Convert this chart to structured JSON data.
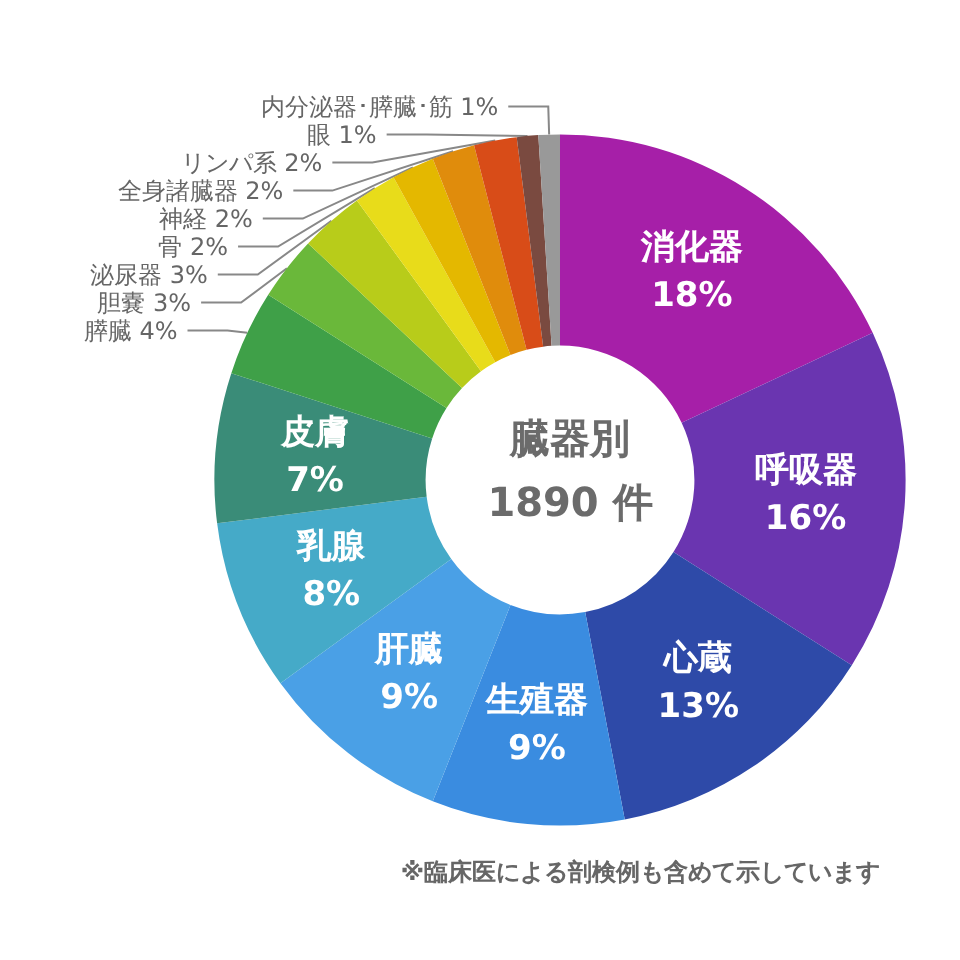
{
  "chart_data": {
    "type": "donut",
    "title": "臓器別",
    "subtitle": "1890 件",
    "categories": [
      "消化器",
      "呼吸器",
      "心蔵",
      "生殖器",
      "肝臓",
      "乳腺",
      "皮膚",
      "膵臓",
      "胆嚢",
      "泌尿器",
      "骨",
      "神経",
      "全身諸臓器",
      "リンパ系",
      "眼",
      "内分泌器･膵臓･筋"
    ],
    "values": [
      18,
      16,
      13,
      9,
      9,
      8,
      7,
      4,
      3,
      3,
      2,
      2,
      2,
      2,
      1,
      1
    ],
    "value_labels": [
      "18%",
      "16%",
      "13%",
      "9%",
      "9%",
      "8%",
      "7%",
      "4%",
      "3%",
      "3%",
      "2%",
      "2%",
      "2%",
      "2%",
      "1%",
      "1%"
    ],
    "colors": [
      "#a61fa8",
      "#6a35b0",
      "#2e4aa8",
      "#3a8ce0",
      "#4aa0e6",
      "#45aac8",
      "#3a8c78",
      "#3fa048",
      "#6ab83a",
      "#b8cc1a",
      "#e8dc1a",
      "#e4b800",
      "#e08c0c",
      "#d84c18",
      "#7a4a40",
      "#999999"
    ],
    "legend": false,
    "annotations": [
      "※臨床医による剖検例も含めて示しています"
    ]
  }
}
